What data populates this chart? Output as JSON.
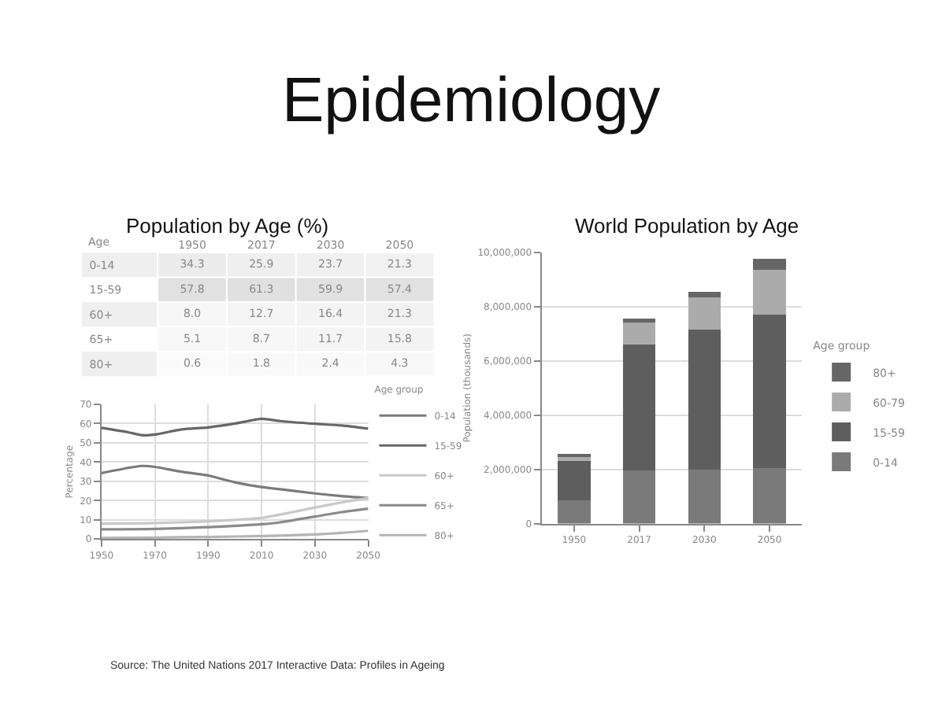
{
  "chart_data": [
    {
      "type": "heatmap",
      "data_labels": true,
      "title": "Epidemiology",
      "subtitle": "Population by Age (%)",
      "ylabel": "Age",
      "categories": [
        "1950",
        "2017",
        "2030",
        "2050"
      ],
      "y_categories": [
        "0-14",
        "15-59",
        "60+",
        "65+",
        "80+"
      ],
      "cells": [
        [
          34.3,
          25.9,
          23.7,
          21.3
        ],
        [
          57.8,
          61.3,
          59.9,
          57.4
        ],
        [
          8.0,
          12.7,
          16.4,
          21.3
        ],
        [
          5.1,
          8.7,
          11.7,
          15.8
        ],
        [
          0.6,
          1.8,
          2.4,
          4.3
        ]
      ],
      "cell_labels": [
        [
          "34.3",
          "25.9",
          "23.7",
          "21.3"
        ],
        [
          "57.8",
          "61.3",
          "59.9",
          "57.4"
        ],
        [
          "8.0",
          "12.7",
          "16.4",
          "21.3"
        ],
        [
          "5.1",
          "8.7",
          "11.7",
          "15.8"
        ],
        [
          "0.6",
          "1.8",
          "2.4",
          "4.3"
        ]
      ],
      "annotations": [
        "Source: The United Nations 2017 Interactive Data: Profiles in Ageing"
      ]
    },
    {
      "type": "line",
      "ylabel": "Percentage",
      "legend_title": "Age group",
      "legend": "right",
      "grid": true,
      "xlim": [
        1950,
        2050
      ],
      "xticks": [
        1950,
        1970,
        1990,
        2010,
        2030,
        2050
      ],
      "ylim": [
        0,
        70
      ],
      "yticks": [
        0,
        10,
        20,
        30,
        40,
        50,
        60,
        70
      ],
      "series": [
        {
          "name": "0-14",
          "color": "#7a7a7a",
          "x": [
            1950,
            1960,
            1965,
            1970,
            1980,
            1990,
            2000,
            2010,
            2017,
            2030,
            2040,
            2050
          ],
          "values": [
            34.3,
            37,
            38,
            37.5,
            35,
            33,
            29.5,
            27,
            25.9,
            23.7,
            22.3,
            21.3
          ]
        },
        {
          "name": "15-59",
          "color": "#666666",
          "x": [
            1950,
            1960,
            1965,
            1970,
            1980,
            1990,
            2000,
            2010,
            2017,
            2030,
            2040,
            2050
          ],
          "values": [
            57.8,
            55.5,
            54,
            54.3,
            57,
            58,
            60,
            62.5,
            61.3,
            59.9,
            59,
            57.4
          ]
        },
        {
          "name": "60+",
          "color": "#c8c8c8",
          "x": [
            1950,
            1970,
            1990,
            2000,
            2010,
            2017,
            2030,
            2040,
            2050
          ],
          "values": [
            8.0,
            8.3,
            9.2,
            10,
            11,
            12.7,
            16.4,
            19,
            21.3
          ]
        },
        {
          "name": "65+",
          "color": "#8a8a8a",
          "x": [
            1950,
            1970,
            1990,
            2010,
            2017,
            2030,
            2040,
            2050
          ],
          "values": [
            5.1,
            5.3,
            6.2,
            7.7,
            8.7,
            11.7,
            14,
            15.8
          ]
        },
        {
          "name": "80+",
          "color": "#b4b4b4",
          "x": [
            1950,
            1970,
            1990,
            2010,
            2017,
            2030,
            2040,
            2050
          ],
          "values": [
            0.6,
            0.8,
            1.1,
            1.6,
            1.8,
            2.4,
            3.2,
            4.3
          ]
        }
      ]
    },
    {
      "type": "bar",
      "stacked": true,
      "title": "World Population by Age",
      "ylabel": "Population (thousands)",
      "legend_title": "Age group",
      "legend": "right",
      "grid": "y",
      "categories": [
        "1950",
        "2017",
        "2030",
        "2050"
      ],
      "ylim": [
        0,
        10000000
      ],
      "yticks": [
        0,
        {
          "value": 2000000,
          "label": "2,000,000"
        },
        {
          "value": 4000000,
          "label": "4,000,000"
        },
        {
          "value": 6000000,
          "label": "6,000,000"
        },
        {
          "value": 8000000,
          "label": "8,000,000"
        },
        {
          "value": 10000000,
          "label": "10,000,000"
        }
      ],
      "series": [
        {
          "name": "0-14",
          "color": "#7a7a7a",
          "values": [
            870000,
            1950000,
            2000000,
            2060000
          ]
        },
        {
          "name": "15-59",
          "color": "#5e5e5e",
          "values": [
            1450000,
            4650000,
            5150000,
            5640000
          ]
        },
        {
          "name": "60-79",
          "color": "#ababab",
          "values": [
            180000,
            830000,
            1200000,
            1650000
          ]
        },
        {
          "name": "80+",
          "color": "#666666",
          "values": [
            40000,
            130000,
            200000,
            430000
          ]
        }
      ]
    }
  ]
}
